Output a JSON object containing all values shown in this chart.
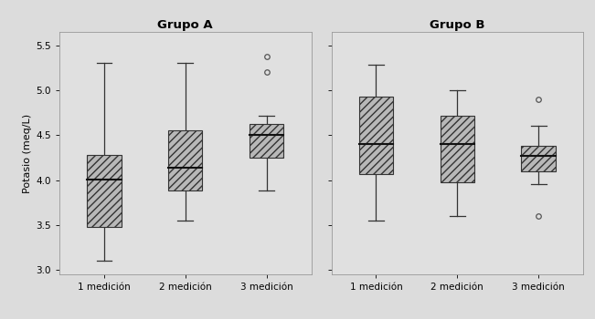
{
  "title_A": "Grupo A",
  "title_B": "Grupo B",
  "ylabel": "Potasio (meq/L)",
  "xlabel_ticks": [
    "1 medición",
    "2 medición",
    "3 medición"
  ],
  "ylim": [
    2.95,
    5.65
  ],
  "yticks": [
    3.0,
    3.5,
    4.0,
    4.5,
    5.0,
    5.5
  ],
  "fig_facecolor": "#DCDCDC",
  "axes_facecolor": "#E0E0E0",
  "box_facecolor": "#B8B8B8",
  "box_edgecolor": "#333333",
  "median_color": "#111111",
  "whisker_color": "#333333",
  "flier_color": "#555555",
  "grupA": {
    "box1": {
      "q1": 3.48,
      "median": 4.01,
      "q3": 4.28,
      "whislo": 3.1,
      "whishi": 5.3,
      "fliers": []
    },
    "box2": {
      "q1": 3.88,
      "median": 4.14,
      "q3": 4.55,
      "whislo": 3.55,
      "whishi": 5.3,
      "fliers": []
    },
    "box3": {
      "q1": 4.25,
      "median": 4.5,
      "q3": 4.62,
      "whislo": 3.88,
      "whishi": 4.72,
      "fliers": [
        5.38,
        5.2
      ]
    }
  },
  "grupB": {
    "box1": {
      "q1": 4.07,
      "median": 4.4,
      "q3": 4.93,
      "whislo": 3.55,
      "whishi": 5.28,
      "fliers": []
    },
    "box2": {
      "q1": 3.98,
      "median": 4.4,
      "q3": 4.72,
      "whislo": 3.6,
      "whishi": 5.0,
      "fliers": []
    },
    "box3": {
      "q1": 4.1,
      "median": 4.27,
      "q3": 4.38,
      "whislo": 3.95,
      "whishi": 4.6,
      "fliers": [
        4.9,
        3.6
      ]
    }
  }
}
